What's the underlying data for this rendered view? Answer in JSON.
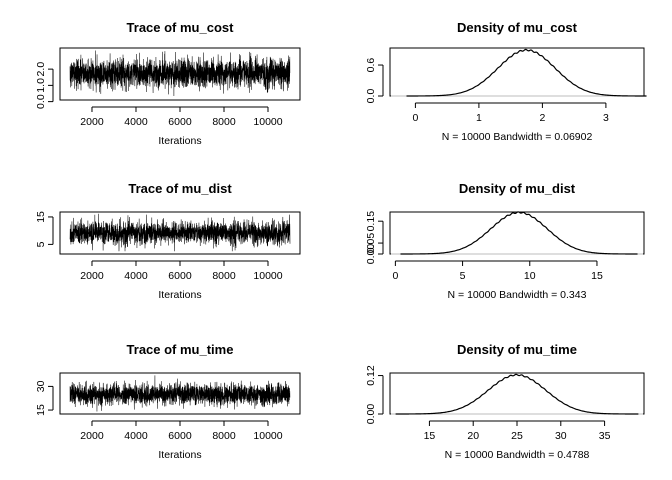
{
  "chart_data": [
    {
      "type": "line",
      "title": "Trace of mu_cost",
      "xlabel": "Iterations",
      "x_range": [
        1001,
        11000
      ],
      "xticks": [
        2000,
        4000,
        6000,
        8000,
        10000
      ],
      "ylim": [
        0.1,
        3.3
      ],
      "yticks": [
        "0.0",
        "1.0",
        "2.0"
      ],
      "trace": {
        "mean": 1.75,
        "sd": 0.45,
        "min": 0.35,
        "max": 3.15
      }
    },
    {
      "type": "line",
      "title": "Density of mu_cost",
      "xlabel": "N = 10000   Bandwidth = 0.06902",
      "xlim": [
        -0.4,
        3.6
      ],
      "xticks": [
        "0",
        "1",
        "2",
        "3"
      ],
      "ylim": [
        0,
        0.93
      ],
      "yticks": [
        "0.0",
        "0.6"
      ],
      "density": {
        "mean": 1.75,
        "sd": 0.45,
        "peak": 0.89
      }
    },
    {
      "type": "line",
      "title": "Trace of mu_dist",
      "xlabel": "Iterations",
      "x_range": [
        1001,
        11000
      ],
      "xticks": [
        2000,
        4000,
        6000,
        8000,
        10000
      ],
      "ylim": [
        1.5,
        16.8
      ],
      "yticks": [
        "5",
        "15"
      ],
      "trace": {
        "mean": 9.2,
        "sd": 2.1,
        "min": 2.5,
        "max": 16.2
      }
    },
    {
      "type": "line",
      "title": "Density of mu_dist",
      "xlabel": "N = 10000   Bandwidth = 0.343",
      "xlim": [
        -0.4,
        18.5
      ],
      "xticks": [
        "0",
        "5",
        "10",
        "15"
      ],
      "ylim": [
        0,
        0.192
      ],
      "yticks": [
        "0.00",
        "0.05",
        "0.15"
      ],
      "density": {
        "mean": 9.2,
        "sd": 2.1,
        "peak": 0.19
      }
    },
    {
      "type": "line",
      "title": "Trace of mu_time",
      "xlabel": "Iterations",
      "x_range": [
        1001,
        11000
      ],
      "xticks": [
        2000,
        4000,
        6000,
        8000,
        10000
      ],
      "ylim": [
        12.5,
        38.5
      ],
      "yticks": [
        "15",
        "30"
      ],
      "trace": {
        "mean": 25,
        "sd": 3.3,
        "min": 14,
        "max": 37
      }
    },
    {
      "type": "line",
      "title": "Density of mu_time",
      "xlabel": "N = 10000   Bandwidth = 0.4788",
      "xlim": [
        10.5,
        39.5
      ],
      "xticks": [
        "15",
        "20",
        "25",
        "30",
        "35"
      ],
      "ylim": [
        0,
        0.128
      ],
      "yticks": [
        "0.00",
        "0.12"
      ],
      "density": {
        "mean": 25,
        "sd": 3.3,
        "peak": 0.122
      }
    }
  ]
}
